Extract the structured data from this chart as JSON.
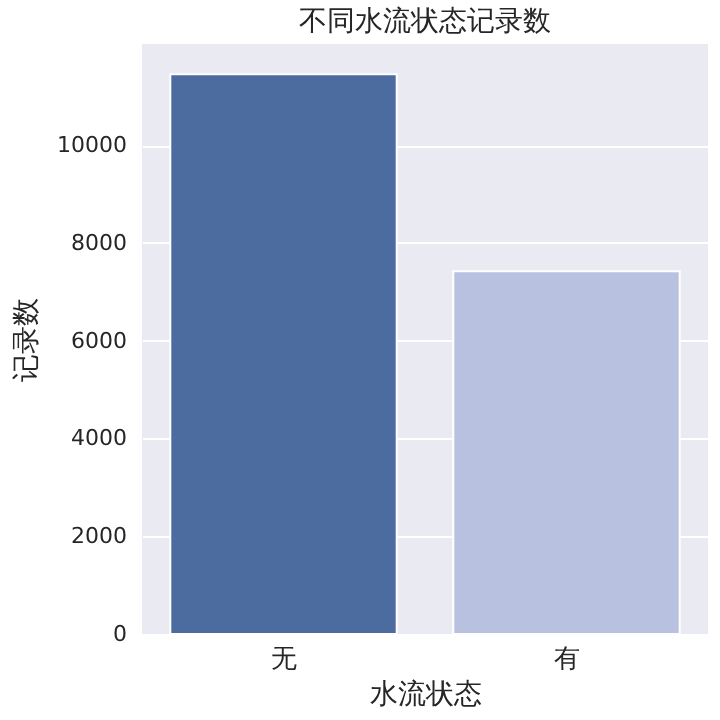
{
  "chart_data": {
    "type": "bar",
    "title": "不同水流状态记录数",
    "xlabel": "水流状态",
    "ylabel": "记录数",
    "categories": [
      "无",
      "有"
    ],
    "values": [
      11450,
      7420
    ],
    "colors": [
      "#4c6ca0",
      "#b8c2e0"
    ],
    "ylim": [
      0,
      12070
    ],
    "yticks": [
      0,
      2000,
      4000,
      6000,
      8000,
      10000
    ],
    "grid": "y"
  }
}
